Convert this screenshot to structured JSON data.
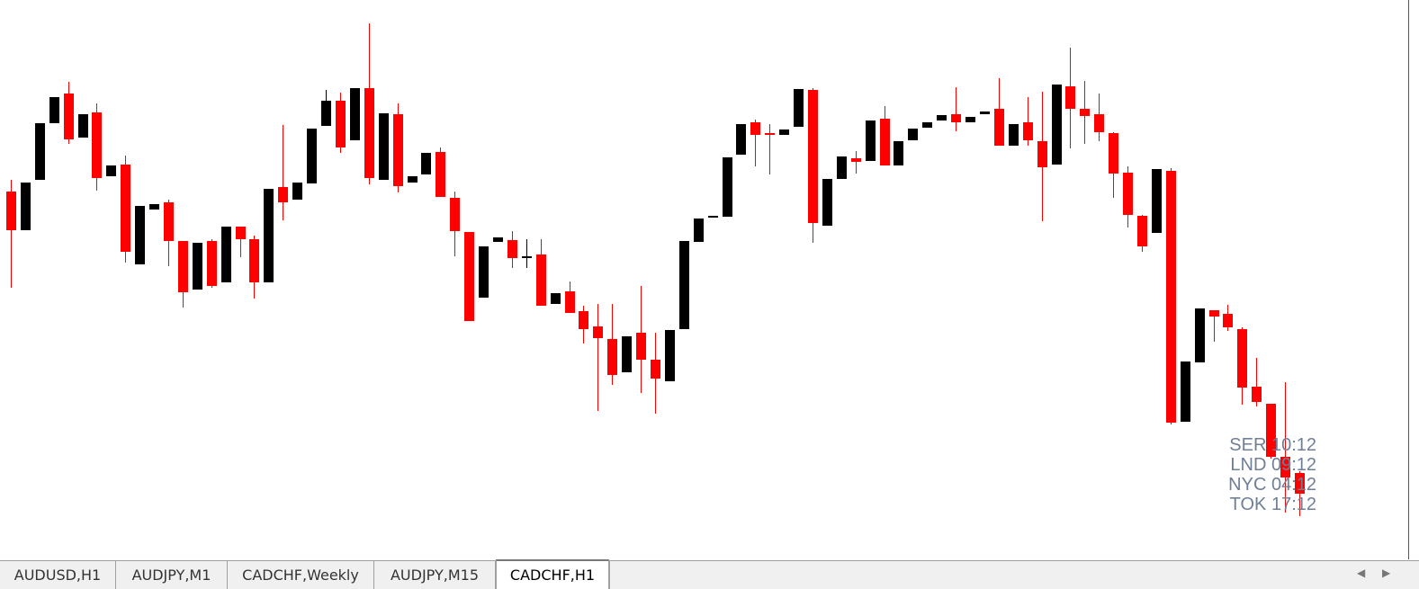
{
  "chart_data": {
    "type": "candlestick",
    "ylim": [
      0,
      620
    ],
    "bull_color": "#000000",
    "bear_color": "#ff0000",
    "series": [
      {
        "open": [
          407,
          364,
          420,
          483,
          516,
          467,
          495,
          424,
          437,
          326,
          387,
          395,
          352,
          298,
          352,
          306,
          368,
          354,
          306,
          412,
          398,
          416,
          480,
          508,
          464,
          522,
          420,
          493,
          417,
          426,
          451,
          400,
          362,
          289,
          351,
          353,
          335,
          337,
          282,
          296,
          274,
          257,
          243,
          206,
          250,
          220,
          196,
          254,
          351,
          378,
          379,
          448,
          484,
          472,
          470,
          479,
          520,
          369,
          421,
          444,
          441,
          488,
          436,
          464,
          478,
          486,
          493,
          484,
          493,
          499,
          458,
          484,
          463,
          437,
          524,
          499,
          493,
          472,
          428,
          380,
          361,
          430,
          151,
          217,
          275,
          271,
          254,
          190,
          171,
          112,
          94
        ],
        "high": [
          420,
          417,
          483,
          512,
          529,
          493,
          505,
          436,
          447,
          391,
          393,
          398,
          352,
          350,
          354,
          368,
          368,
          358,
          410,
          481,
          417,
          477,
          520,
          517,
          522,
          594,
          494,
          505,
          424,
          450,
          456,
          407,
          362,
          346,
          356,
          363,
          354,
          354,
          294,
          307,
          280,
          282,
          282,
          246,
          302,
          250,
          253,
          352,
          377,
          380,
          445,
          482,
          487,
          482,
          476,
          521,
          522,
          421,
          446,
          452,
          486,
          502,
          463,
          477,
          484,
          492,
          523,
          490,
          496,
          533,
          482,
          512,
          518,
          526,
          567,
          530,
          516,
          473,
          435,
          381,
          432,
          433,
          218,
          277,
          275,
          281,
          256,
          222,
          171,
          195,
          96
        ],
        "low": [
          300,
          364,
          420,
          483,
          460,
          467,
          408,
          424,
          328,
          326,
          387,
          324,
          278,
          298,
          300,
          306,
          334,
          288,
          306,
          375,
          398,
          416,
          480,
          450,
          464,
          415,
          420,
          406,
          417,
          426,
          401,
          335,
          263,
          289,
          351,
          322,
          322,
          280,
          282,
          272,
          238,
          163,
          192,
          206,
          183,
          160,
          196,
          254,
          351,
          378,
          379,
          448,
          435,
          426,
          470,
          479,
          350,
          369,
          421,
          427,
          441,
          436,
          436,
          464,
          478,
          486,
          474,
          484,
          493,
          458,
          458,
          458,
          374,
          437,
          455,
          460,
          463,
          400,
          367,
          340,
          361,
          148,
          151,
          217,
          240,
          252,
          170,
          168,
          110,
          50,
          46
        ],
        "close": [
          364,
          417,
          483,
          512,
          465,
          493,
          422,
          436,
          340,
          391,
          393,
          352,
          295,
          350,
          302,
          368,
          354,
          306,
          410,
          395,
          417,
          477,
          508,
          456,
          522,
          422,
          494,
          413,
          424,
          450,
          401,
          363,
          263,
          346,
          356,
          333,
          335,
          280,
          294,
          272,
          254,
          244,
          203,
          246,
          220,
          199,
          253,
          352,
          377,
          380,
          445,
          482,
          470,
          470,
          476,
          521,
          372,
          421,
          446,
          440,
          486,
          436,
          463,
          477,
          484,
          492,
          484,
          490,
          496,
          458,
          482,
          464,
          434,
          526,
          499,
          491,
          473,
          427,
          381,
          346,
          432,
          150,
          218,
          277,
          268,
          256,
          189,
          173,
          112,
          89,
          71
        ]
      }
    ]
  },
  "sessions": [
    "SER 10:12",
    "LND 09:12",
    "NYC 04:12",
    "TOK 17:12"
  ],
  "tabs": [
    {
      "label": "AUDUSD,H1",
      "active": false
    },
    {
      "label": "AUDJPY,M1",
      "active": false
    },
    {
      "label": "CADCHF,Weekly",
      "active": false
    },
    {
      "label": "AUDJPY,M15",
      "active": false
    },
    {
      "label": "CADCHF,H1",
      "active": true
    }
  ]
}
